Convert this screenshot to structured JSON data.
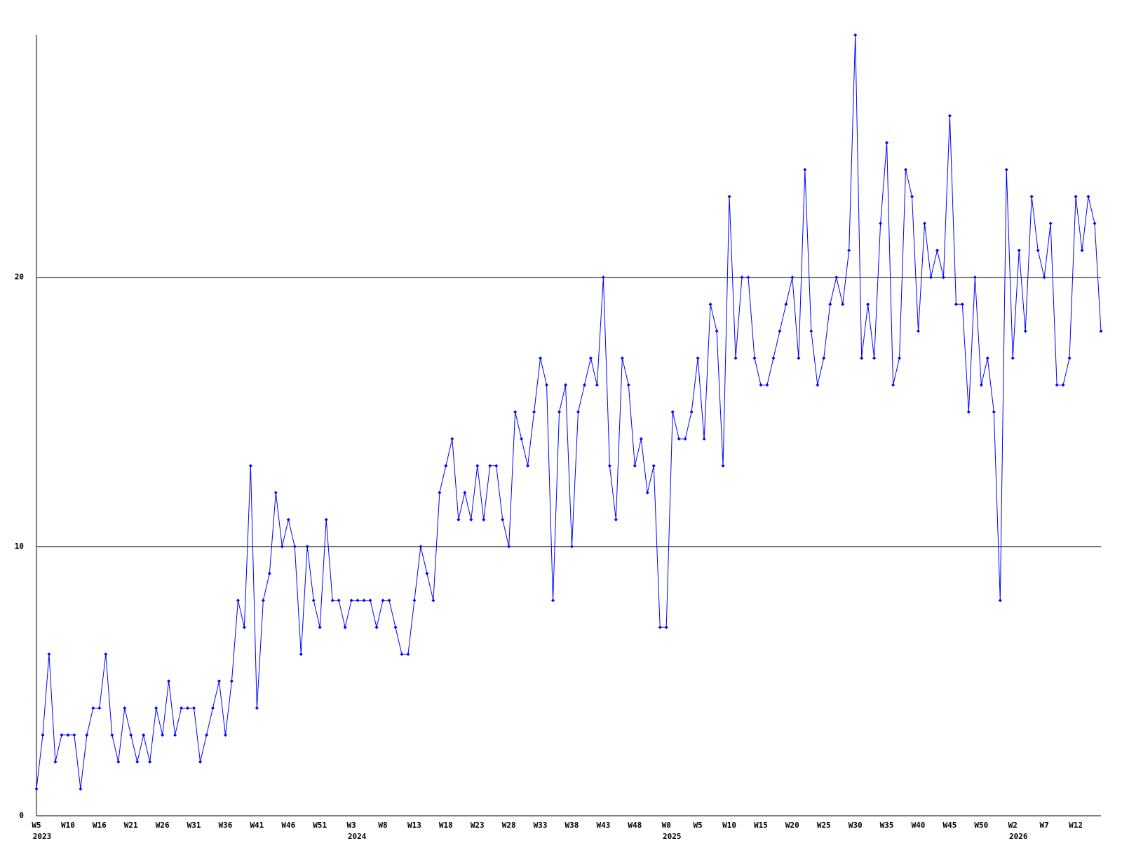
{
  "chart_data": {
    "type": "line",
    "categories": [
      "W5",
      null,
      null,
      null,
      null,
      "W10",
      null,
      null,
      null,
      null,
      "W16",
      null,
      null,
      null,
      null,
      "W21",
      null,
      null,
      null,
      null,
      "W26",
      null,
      null,
      null,
      null,
      "W31",
      null,
      null,
      null,
      null,
      "W36",
      null,
      null,
      null,
      null,
      "W41",
      null,
      null,
      null,
      null,
      "W46",
      null,
      null,
      null,
      null,
      "W51",
      null,
      null,
      null,
      null,
      "W3",
      null,
      null,
      null,
      null,
      "W8",
      null,
      null,
      null,
      null,
      "W13",
      null,
      null,
      null,
      null,
      "W18",
      null,
      null,
      null,
      null,
      "W23",
      null,
      null,
      null,
      null,
      "W28",
      null,
      null,
      null,
      null,
      "W33",
      null,
      null,
      null,
      null,
      "W38",
      null,
      null,
      null,
      null,
      "W43",
      null,
      null,
      null,
      null,
      "W48",
      null,
      null,
      null,
      null,
      "W0",
      null,
      null,
      null,
      null,
      "W5",
      null,
      null,
      null,
      null,
      "W10",
      null,
      null,
      null,
      null,
      "W15",
      null,
      null,
      null,
      null,
      "W20",
      null,
      null,
      null,
      null,
      "W25",
      null,
      null,
      null,
      null,
      "W30",
      null,
      null,
      null,
      null,
      "W35",
      null,
      null,
      null,
      null,
      "W40",
      null,
      null,
      null,
      null,
      "W45",
      null,
      null,
      null,
      null,
      "W50",
      null,
      null,
      null,
      null,
      "W2",
      null,
      null,
      null,
      null,
      "W7",
      null,
      null,
      null,
      null,
      "W12",
      null,
      null,
      null,
      null
    ],
    "year_labels": [
      {
        "category_index": 0,
        "label": "2023"
      },
      {
        "category_index": 50,
        "label": "2024"
      },
      {
        "category_index": 100,
        "label": "2025"
      },
      {
        "category_index": 155,
        "label": "2026"
      }
    ],
    "values": [
      1,
      3,
      6,
      2,
      3,
      3,
      3,
      1,
      3,
      4,
      4,
      6,
      3,
      2,
      4,
      3,
      2,
      3,
      2,
      4,
      3,
      5,
      3,
      4,
      4,
      4,
      2,
      3,
      4,
      5,
      3,
      5,
      8,
      7,
      13,
      4,
      8,
      9,
      12,
      10,
      11,
      10,
      6,
      10,
      8,
      7,
      11,
      8,
      8,
      7,
      8,
      8,
      8,
      8,
      7,
      8,
      8,
      7,
      6,
      6,
      8,
      10,
      9,
      8,
      12,
      13,
      14,
      11,
      12,
      11,
      13,
      11,
      13,
      13,
      11,
      10,
      15,
      14,
      13,
      15,
      17,
      16,
      8,
      15,
      16,
      10,
      15,
      16,
      17,
      16,
      20,
      13,
      11,
      17,
      16,
      13,
      14,
      12,
      13,
      7,
      7,
      15,
      14,
      14,
      15,
      17,
      14,
      19,
      18,
      13,
      23,
      17,
      20,
      20,
      17,
      16,
      16,
      17,
      18,
      19,
      20,
      17,
      24,
      18,
      16,
      17,
      19,
      20,
      19,
      21,
      29,
      17,
      19,
      17,
      22,
      25,
      16,
      17,
      24,
      23,
      18,
      22,
      20,
      21,
      20,
      26,
      19,
      19,
      15,
      20,
      16,
      17,
      15,
      8,
      24,
      17,
      21,
      18,
      23,
      21,
      20,
      22,
      16,
      16,
      17,
      23,
      21,
      23,
      22,
      18
    ],
    "color": "#0000ff",
    "ylim": [
      0,
      29
    ],
    "yticks": [
      0,
      10,
      20
    ],
    "grid": true
  }
}
